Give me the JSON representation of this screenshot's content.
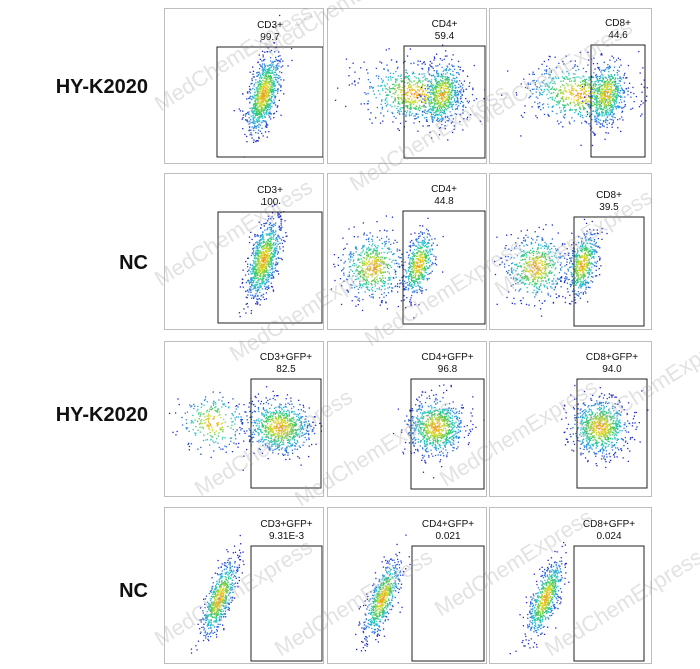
{
  "row_labels": [
    "HY-K2020",
    "NC",
    "HY-K2020",
    "NC"
  ],
  "watermark_text": "MedChemExpress",
  "panels": [
    {
      "gate": "CD3+",
      "value": "99.7",
      "pop": "single-right"
    },
    {
      "gate": "CD4+",
      "value": "59.4",
      "pop": "spread-right"
    },
    {
      "gate": "CD8+",
      "value": "44.6",
      "pop": "spread-right"
    },
    {
      "gate": "CD3+",
      "value": "100",
      "pop": "single-right"
    },
    {
      "gate": "CD4+",
      "value": "44.8",
      "pop": "two-clusters"
    },
    {
      "gate": "CD8+",
      "value": "39.5",
      "pop": "two-clusters"
    },
    {
      "gate": "CD3+GFP+",
      "value": "82.5",
      "pop": "gfp-pos-wide"
    },
    {
      "gate": "CD4+GFP+",
      "value": "96.8",
      "pop": "gfp-pos"
    },
    {
      "gate": "CD8+GFP+",
      "value": "94.0",
      "pop": "gfp-pos"
    },
    {
      "gate": "CD3+GFP+",
      "value": "9.31E-3",
      "pop": "gfp-neg"
    },
    {
      "gate": "CD4+GFP+",
      "value": "0.021",
      "pop": "gfp-neg"
    },
    {
      "gate": "CD8+GFP+",
      "value": "0.024",
      "pop": "gfp-neg"
    }
  ]
}
